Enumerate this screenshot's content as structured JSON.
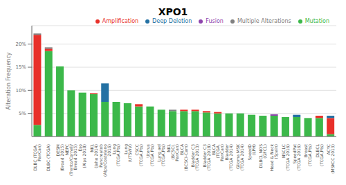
{
  "chart_data": {
    "type": "bar",
    "title": "XPO1",
    "y_label": "Alteration Frequency",
    "categories": [
      "DLBC (TCGA,\nPanCan)",
      "DLBC (TCGA)",
      "DESM\n(Broad 2015)",
      "NEPC\n(Trento/Cornell/\nBread 2015)",
      "Eso\n(Alps 2018)",
      "NKL\n(Jaho 2014)",
      "Pancreatob\n(Alps/Costelano\n2016)",
      "Lung\n(TCGA,Pts)",
      "Lung\n(UTSWV)",
      "CSCC\n(TCGA,Pts)",
      "Uterus\n(TCGA Pts)",
      "Lung ael\n(TCGA,Pts)",
      "NKL\n(BCSCI,\nPanCan)",
      "BLCA\n(BCSCI-Cam)",
      "Bladder C3\n(TCGA 2013)",
      "Bladder C3\n(TCGA 2018)",
      "BLCA\n(TCGA,\nPanCan)",
      "Bladder\n(TCGA 2014)",
      "Glioma MSK\n(TCGA 2014)",
      "SpeedD\n(LPH)",
      "DLBCL NOS\n(GFC1)",
      "Head & Neck\n(Spain)",
      "NSCLC\n(TCGA 2016)",
      "SpeedPat\n(TCGA 2016)",
      "Breast\n(TCGA,Pts)",
      "DLBCL\n(TCGA,Pts)",
      "ACYC\n(MSKCC 2013)"
    ],
    "series": [
      {
        "name": "Mutation",
        "color": "#3cb84a",
        "values": [
          2.5,
          18.5,
          15.2,
          10.0,
          9.5,
          9.2,
          7.5,
          7.5,
          7.2,
          6.5,
          6.5,
          5.8,
          5.5,
          5.5,
          5.5,
          5.2,
          5.0,
          5.0,
          5.0,
          4.7,
          4.5,
          4.5,
          4.2,
          4.2,
          4.0,
          4.0,
          0.5
        ]
      },
      {
        "name": "Amplification",
        "color": "#e8302a",
        "values": [
          19.5,
          0.5,
          0.0,
          0.0,
          0.0,
          0.2,
          0.0,
          0.0,
          0.0,
          0.5,
          0.0,
          0.0,
          0.0,
          0.3,
          0.3,
          0.3,
          0.3,
          0.0,
          0.0,
          0.0,
          0.0,
          0.0,
          0.0,
          0.0,
          0.0,
          0.5,
          3.5
        ]
      },
      {
        "name": "Fusion",
        "color": "#8e44ad",
        "values": [
          0.0,
          0.0,
          0.0,
          0.0,
          0.0,
          0.0,
          0.0,
          0.0,
          0.0,
          0.0,
          0.0,
          0.0,
          0.0,
          0.0,
          0.0,
          0.0,
          0.0,
          0.0,
          0.0,
          0.0,
          0.0,
          0.3,
          0.0,
          0.0,
          0.0,
          0.0,
          0.0
        ]
      },
      {
        "name": "Deep Deletion",
        "color": "#2471a3",
        "values": [
          0.0,
          0.0,
          0.0,
          0.0,
          0.0,
          0.0,
          4.0,
          0.0,
          0.0,
          0.0,
          0.0,
          0.0,
          0.0,
          0.0,
          0.0,
          0.0,
          0.0,
          0.0,
          0.0,
          0.0,
          0.0,
          0.0,
          0.0,
          0.5,
          0.0,
          0.0,
          0.5
        ]
      },
      {
        "name": "Multiple Alterations",
        "color": "#808080",
        "values": [
          0.3,
          0.3,
          0.0,
          0.0,
          0.0,
          0.0,
          0.0,
          0.0,
          0.0,
          0.0,
          0.0,
          0.0,
          0.3,
          0.0,
          0.0,
          0.0,
          0.0,
          0.0,
          0.0,
          0.0,
          0.0,
          0.0,
          0.0,
          0.0,
          0.0,
          0.0,
          0.0
        ]
      }
    ],
    "stacked": true,
    "ylim": [
      0,
      24
    ],
    "yticks": [
      {
        "value": 5,
        "label": "5%"
      },
      {
        "value": 10,
        "label": "10%"
      },
      {
        "value": 15,
        "label": "15%"
      },
      {
        "value": 20,
        "label": "20%"
      }
    ],
    "grid": true,
    "legend": "upper right"
  }
}
